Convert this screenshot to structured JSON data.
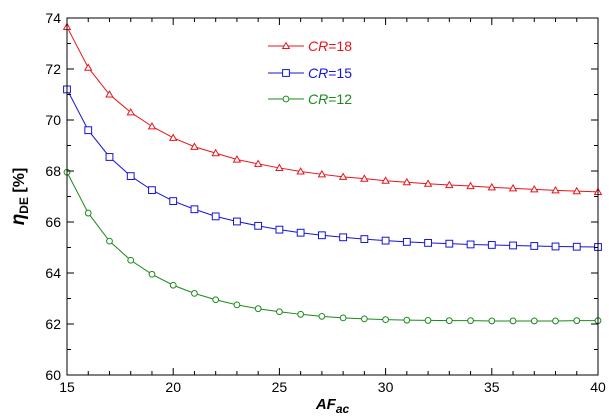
{
  "chart_data": {
    "type": "line",
    "xlabel": {
      "main": "AF",
      "sub": "ac"
    },
    "ylabel": {
      "main": "η",
      "sub": "DE",
      "unit": " [%]"
    },
    "xlim": [
      15,
      40
    ],
    "ylim": [
      60,
      74
    ],
    "x_ticks": [
      15,
      20,
      25,
      30,
      35,
      40
    ],
    "y_ticks": [
      60,
      62,
      64,
      66,
      68,
      70,
      72,
      74
    ],
    "grid": false,
    "legend_position": "top-center",
    "x": [
      15,
      16,
      17,
      18,
      19,
      20,
      21,
      22,
      23,
      24,
      25,
      26,
      27,
      28,
      29,
      30,
      31,
      32,
      33,
      34,
      35,
      36,
      37,
      38,
      39,
      40
    ],
    "series": [
      {
        "name": "CR=18",
        "label_var": "CR",
        "label_val": "=18",
        "color": "#e8141b",
        "marker": "triangle",
        "values": [
          73.65,
          72.05,
          71.0,
          70.3,
          69.75,
          69.3,
          68.95,
          68.7,
          68.45,
          68.28,
          68.12,
          67.98,
          67.87,
          67.77,
          67.7,
          67.62,
          67.56,
          67.5,
          67.45,
          67.41,
          67.36,
          67.32,
          67.28,
          67.24,
          67.21,
          67.18
        ]
      },
      {
        "name": "CR=15",
        "label_var": "CR",
        "label_val": "=15",
        "color": "#1515d6",
        "marker": "square",
        "values": [
          71.2,
          69.6,
          68.55,
          67.8,
          67.25,
          66.82,
          66.5,
          66.22,
          66.02,
          65.85,
          65.7,
          65.58,
          65.48,
          65.4,
          65.33,
          65.27,
          65.22,
          65.18,
          65.15,
          65.12,
          65.1,
          65.08,
          65.06,
          65.04,
          65.03,
          65.02
        ]
      },
      {
        "name": "CR=12",
        "label_var": "CR",
        "label_val": "=12",
        "color": "#1a8a1a",
        "marker": "circle",
        "values": [
          67.95,
          66.35,
          65.25,
          64.5,
          63.95,
          63.52,
          63.2,
          62.95,
          62.75,
          62.6,
          62.48,
          62.38,
          62.3,
          62.24,
          62.2,
          62.17,
          62.15,
          62.14,
          62.13,
          62.13,
          62.12,
          62.12,
          62.12,
          62.12,
          62.13,
          62.13
        ]
      }
    ]
  }
}
